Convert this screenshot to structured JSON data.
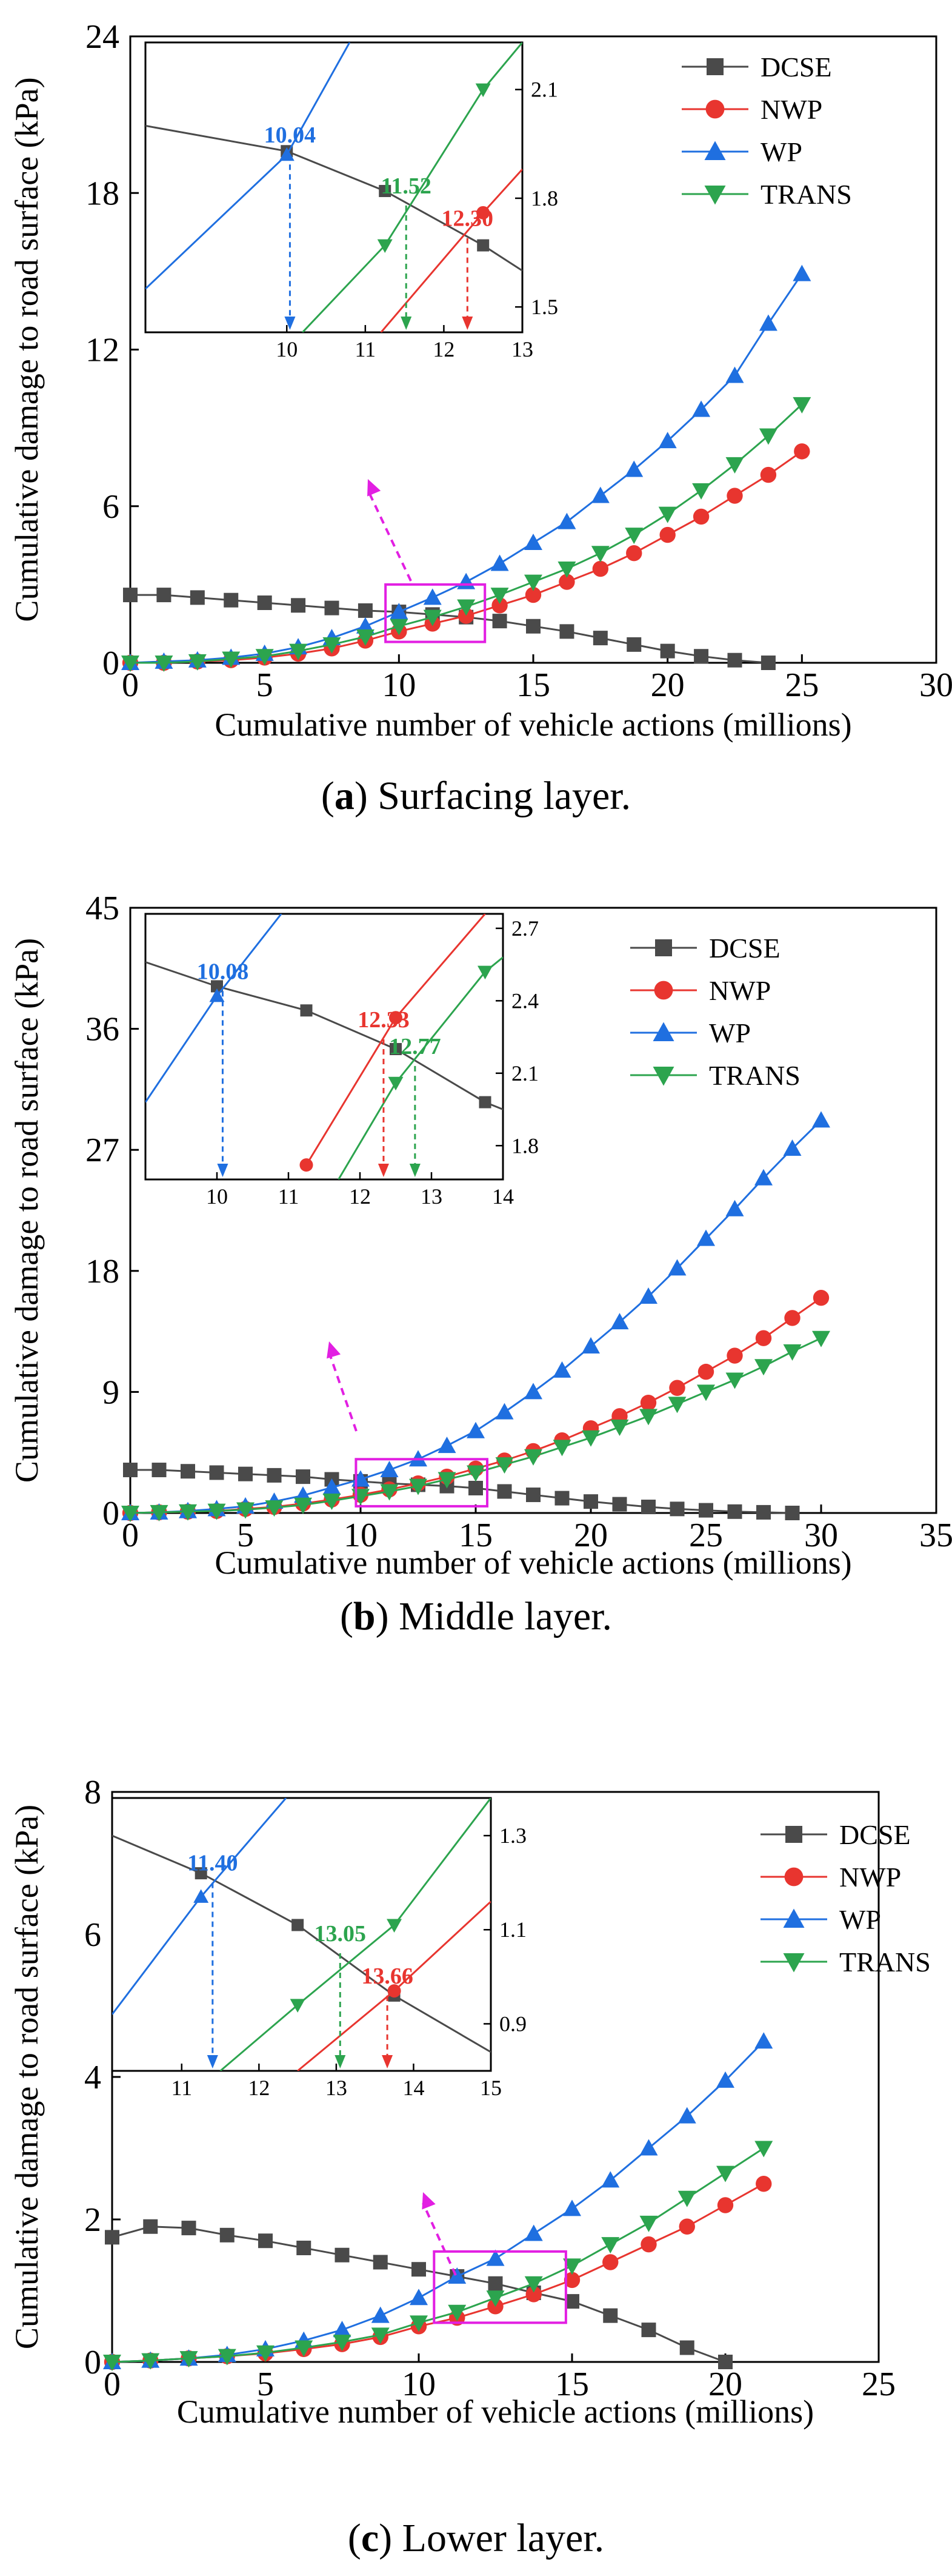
{
  "colors": {
    "DCSE": "#4a4a4a",
    "NWP": "#e8352f",
    "WP": "#1f6fe0",
    "TRANS": "#2ca44e",
    "highlight": "#e21fe2"
  },
  "chart_data": [
    {
      "type": "line",
      "caption_letter": "a",
      "caption_text": " Surfacing layer.",
      "xlabel": "Cumulative number of vehicle actions (millions)",
      "ylabel": "Cumulative damage to road surface (kPa)",
      "xlim": [
        0,
        30
      ],
      "ylim": [
        0,
        24
      ],
      "xticks": [
        "0",
        "5",
        "10",
        "15",
        "20",
        "25",
        "30"
      ],
      "yticks": [
        "0",
        "6",
        "12",
        "18",
        "24"
      ],
      "legend": "top-right",
      "highlight_box": {
        "x": [
          9.5,
          13.2
        ],
        "y": [
          0.8,
          3.0
        ]
      },
      "series": [
        {
          "name": "DCSE",
          "marker": "square",
          "x": [
            0,
            1.25,
            2.5,
            3.75,
            5,
            6.25,
            7.5,
            8.75,
            10,
            11.25,
            12.5,
            13.75,
            15,
            16.25,
            17.5,
            18.75,
            20,
            21.25,
            22.5,
            23.75
          ],
          "y": [
            2.6,
            2.6,
            2.5,
            2.4,
            2.3,
            2.2,
            2.1,
            2.0,
            1.95,
            1.85,
            1.75,
            1.6,
            1.4,
            1.2,
            0.95,
            0.7,
            0.45,
            0.25,
            0.1,
            0.0
          ]
        },
        {
          "name": "NWP",
          "marker": "circle",
          "x": [
            0,
            1.25,
            2.5,
            3.75,
            5,
            6.25,
            7.5,
            8.75,
            10,
            11.25,
            12.5,
            13.75,
            15,
            16.25,
            17.5,
            18.75,
            20,
            21.25,
            22.5,
            23.75,
            25
          ],
          "y": [
            0.0,
            0.0,
            0.05,
            0.1,
            0.2,
            0.35,
            0.55,
            0.85,
            1.2,
            1.5,
            1.8,
            2.2,
            2.6,
            3.1,
            3.6,
            4.2,
            4.9,
            5.6,
            6.4,
            7.2,
            8.1
          ]
        },
        {
          "name": "WP",
          "marker": "triangle-up",
          "x": [
            0,
            1.25,
            2.5,
            3.75,
            5,
            6.25,
            7.5,
            8.75,
            10,
            11.25,
            12.5,
            13.75,
            15,
            16.25,
            17.5,
            18.75,
            20,
            21.25,
            22.5,
            23.75,
            25
          ],
          "y": [
            0.0,
            0.05,
            0.1,
            0.2,
            0.35,
            0.6,
            0.95,
            1.4,
            1.95,
            2.5,
            3.1,
            3.8,
            4.6,
            5.4,
            6.4,
            7.4,
            8.5,
            9.7,
            11.0,
            13.0,
            14.9
          ]
        },
        {
          "name": "TRANS",
          "marker": "triangle-down",
          "x": [
            0,
            1.25,
            2.5,
            3.75,
            5,
            6.25,
            7.5,
            8.75,
            10,
            11.25,
            12.5,
            13.75,
            15,
            16.25,
            17.5,
            18.75,
            20,
            21.25,
            22.5,
            23.75,
            25
          ],
          "y": [
            0.0,
            0.0,
            0.05,
            0.15,
            0.25,
            0.45,
            0.7,
            1.0,
            1.4,
            1.75,
            2.15,
            2.6,
            3.1,
            3.6,
            4.2,
            4.9,
            5.7,
            6.6,
            7.6,
            8.7,
            9.9
          ]
        }
      ],
      "inset": {
        "xlim": [
          8.2,
          13
        ],
        "ylim": [
          1.43,
          2.23
        ],
        "xticks": [
          "10",
          "11",
          "12",
          "13"
        ],
        "yticks": [
          "1.5",
          "1.8",
          "2.1"
        ],
        "series": [
          {
            "name": "DCSE",
            "x": [
              8.2,
              10.0,
              11.25,
              12.5,
              13.0
            ],
            "y": [
              2.0,
              1.93,
              1.82,
              1.67,
              1.6
            ]
          },
          {
            "name": "NWP",
            "x": [
              11.2,
              12.5,
              13.0
            ],
            "y": [
              1.43,
              1.76,
              1.88
            ]
          },
          {
            "name": "WP",
            "x": [
              8.2,
              10.0,
              10.8
            ],
            "y": [
              1.55,
              1.92,
              2.23
            ]
          },
          {
            "name": "TRANS",
            "x": [
              10.2,
              11.25,
              12.5,
              13.0
            ],
            "y": [
              1.43,
              1.67,
              2.1,
              2.23
            ]
          }
        ],
        "intersections": [
          {
            "label": "10.04",
            "x": 10.04,
            "y": 1.92,
            "series": "WP"
          },
          {
            "label": "11.52",
            "x": 11.52,
            "y": 1.78,
            "series": "TRANS"
          },
          {
            "label": "12.30",
            "x": 12.3,
            "y": 1.69,
            "series": "NWP"
          }
        ]
      }
    },
    {
      "type": "line",
      "caption_letter": "b",
      "caption_text": " Middle layer.",
      "xlabel": "Cumulative number of vehicle actions (millions)",
      "ylabel": "Cumulative damage to road surface (kPa)",
      "xlim": [
        0,
        35
      ],
      "ylim": [
        0,
        45
      ],
      "xticks": [
        "0",
        "5",
        "10",
        "15",
        "20",
        "25",
        "30",
        "35"
      ],
      "yticks": [
        "0",
        "9",
        "18",
        "27",
        "36",
        "45"
      ],
      "legend": "top-right",
      "highlight_box": {
        "x": [
          9.8,
          15.5
        ],
        "y": [
          0.5,
          4.0
        ]
      },
      "series": [
        {
          "name": "DCSE",
          "marker": "square",
          "x": [
            0,
            1.25,
            2.5,
            3.75,
            5,
            6.25,
            7.5,
            8.75,
            10,
            11.25,
            12.5,
            13.75,
            15,
            16.25,
            17.5,
            18.75,
            20,
            21.25,
            22.5,
            23.75,
            25,
            26.25,
            27.5,
            28.75
          ],
          "y": [
            3.2,
            3.2,
            3.1,
            3.0,
            2.9,
            2.8,
            2.7,
            2.5,
            2.35,
            2.2,
            2.1,
            2.0,
            1.85,
            1.6,
            1.35,
            1.1,
            0.85,
            0.65,
            0.45,
            0.3,
            0.2,
            0.1,
            0.05,
            0.0
          ]
        },
        {
          "name": "NWP",
          "marker": "circle",
          "x": [
            0,
            1.25,
            2.5,
            3.75,
            5,
            6.25,
            7.5,
            8.75,
            10,
            11.25,
            12.5,
            13.75,
            15,
            16.25,
            17.5,
            18.75,
            20,
            21.25,
            22.5,
            23.75,
            25,
            26.25,
            27.5,
            28.75,
            30
          ],
          "y": [
            0.0,
            0.05,
            0.1,
            0.15,
            0.3,
            0.45,
            0.7,
            1.0,
            1.35,
            1.75,
            2.2,
            2.7,
            3.3,
            3.9,
            4.6,
            5.4,
            6.3,
            7.2,
            8.2,
            9.3,
            10.5,
            11.7,
            13.0,
            14.5,
            16.0
          ]
        },
        {
          "name": "WP",
          "marker": "triangle-up",
          "x": [
            0,
            1.25,
            2.5,
            3.75,
            5,
            6.25,
            7.5,
            8.75,
            10,
            11.25,
            12.5,
            13.75,
            15,
            16.25,
            17.5,
            18.75,
            20,
            21.25,
            22.5,
            23.75,
            25,
            26.25,
            27.5,
            28.75,
            30
          ],
          "y": [
            0.0,
            0.05,
            0.15,
            0.3,
            0.5,
            0.85,
            1.3,
            1.9,
            2.5,
            3.2,
            4.0,
            5.0,
            6.1,
            7.5,
            9.0,
            10.6,
            12.4,
            14.2,
            16.1,
            18.2,
            20.4,
            22.6,
            24.9,
            27.1,
            29.2
          ]
        },
        {
          "name": "TRANS",
          "marker": "triangle-down",
          "x": [
            0,
            1.25,
            2.5,
            3.75,
            5,
            6.25,
            7.5,
            8.75,
            10,
            11.25,
            12.5,
            13.75,
            15,
            16.25,
            17.5,
            18.75,
            20,
            21.25,
            22.5,
            23.75,
            25,
            26.25,
            27.5,
            28.75,
            30
          ],
          "y": [
            0.0,
            0.05,
            0.1,
            0.15,
            0.25,
            0.4,
            0.6,
            0.9,
            1.25,
            1.6,
            2.0,
            2.5,
            3.0,
            3.6,
            4.2,
            4.9,
            5.6,
            6.4,
            7.2,
            8.1,
            9.0,
            9.9,
            10.9,
            12.0,
            13.0
          ]
        }
      ],
      "inset": {
        "xlim": [
          9,
          14
        ],
        "ylim": [
          1.66,
          2.76
        ],
        "xticks": [
          "10",
          "11",
          "12",
          "13",
          "14"
        ],
        "yticks": [
          "1.8",
          "2.1",
          "2.4",
          "2.7"
        ],
        "series": [
          {
            "name": "DCSE",
            "x": [
              9.0,
              10.0,
              11.25,
              12.5,
              13.75,
              14.0
            ],
            "y": [
              2.56,
              2.46,
              2.36,
              2.2,
              1.98,
              1.95
            ]
          },
          {
            "name": "NWP",
            "x": [
              11.25,
              12.5,
              13.75
            ],
            "y": [
              1.72,
              2.33,
              2.76
            ]
          },
          {
            "name": "WP",
            "x": [
              9.0,
              10.0,
              10.9
            ],
            "y": [
              1.98,
              2.42,
              2.76
            ]
          },
          {
            "name": "TRANS",
            "x": [
              11.7,
              12.5,
              13.75,
              14.0
            ],
            "y": [
              1.66,
              2.06,
              2.52,
              2.58
            ]
          }
        ],
        "intersections": [
          {
            "label": "10.08",
            "x": 10.08,
            "y": 2.44,
            "series": "WP"
          },
          {
            "label": "12.33",
            "x": 12.33,
            "y": 2.24,
            "series": "NWP"
          },
          {
            "label": "12.77",
            "x": 12.77,
            "y": 2.13,
            "series": "TRANS"
          }
        ]
      }
    },
    {
      "type": "line",
      "caption_letter": "c",
      "caption_text": " Lower layer.",
      "xlabel": "Cumulative number of vehicle actions (millions)",
      "ylabel": "Cumulative damage to road surface (kPa)",
      "xlim": [
        0,
        25
      ],
      "ylim": [
        0,
        8
      ],
      "xticks": [
        "0",
        "5",
        "10",
        "15",
        "20",
        "25"
      ],
      "yticks": [
        "0",
        "2",
        "4",
        "6",
        "8"
      ],
      "legend": "top-right",
      "highlight_box": {
        "x": [
          10.5,
          14.8
        ],
        "y": [
          0.55,
          1.55
        ]
      },
      "series": [
        {
          "name": "DCSE",
          "marker": "square",
          "x": [
            0,
            1.25,
            2.5,
            3.75,
            5,
            6.25,
            7.5,
            8.75,
            10,
            11.25,
            12.5,
            13.75,
            15,
            16.25,
            17.5,
            18.75,
            20
          ],
          "y": [
            1.75,
            1.9,
            1.88,
            1.78,
            1.7,
            1.6,
            1.5,
            1.4,
            1.3,
            1.2,
            1.1,
            0.97,
            0.85,
            0.65,
            0.45,
            0.2,
            0.0
          ]
        },
        {
          "name": "NWP",
          "marker": "circle",
          "x": [
            0,
            1.25,
            2.5,
            3.75,
            5,
            6.25,
            7.5,
            8.75,
            10,
            11.25,
            12.5,
            13.75,
            15,
            16.25,
            17.5,
            18.75,
            20,
            21.25
          ],
          "y": [
            0.0,
            0.02,
            0.05,
            0.08,
            0.12,
            0.18,
            0.25,
            0.35,
            0.5,
            0.62,
            0.78,
            0.95,
            1.15,
            1.4,
            1.65,
            1.9,
            2.2,
            2.5
          ]
        },
        {
          "name": "WP",
          "marker": "triangle-up",
          "x": [
            0,
            1.25,
            2.5,
            3.75,
            5,
            6.25,
            7.5,
            8.75,
            10,
            11.25,
            12.5,
            13.75,
            15,
            16.25,
            17.5,
            18.75,
            20,
            21.25
          ],
          "y": [
            0.0,
            0.02,
            0.05,
            0.1,
            0.18,
            0.3,
            0.45,
            0.65,
            0.9,
            1.2,
            1.45,
            1.8,
            2.15,
            2.55,
            3.0,
            3.45,
            3.95,
            4.5
          ]
        },
        {
          "name": "TRANS",
          "marker": "triangle-down",
          "x": [
            0,
            1.25,
            2.5,
            3.75,
            5,
            6.25,
            7.5,
            8.75,
            10,
            11.25,
            12.5,
            13.75,
            15,
            16.25,
            17.5,
            18.75,
            20,
            21.25
          ],
          "y": [
            0.0,
            0.02,
            0.05,
            0.08,
            0.13,
            0.2,
            0.28,
            0.38,
            0.55,
            0.7,
            0.9,
            1.1,
            1.35,
            1.65,
            1.95,
            2.3,
            2.65,
            3.0
          ]
        }
      ],
      "inset": {
        "xlim": [
          10.1,
          15
        ],
        "ylim": [
          0.8,
          1.38
        ],
        "xticks": [
          "11",
          "12",
          "13",
          "14",
          "15"
        ],
        "yticks": [
          "0.9",
          "1.1",
          "1.3"
        ],
        "series": [
          {
            "name": "DCSE",
            "x": [
              10.1,
              11.25,
              12.5,
              13.75,
              15.0
            ],
            "y": [
              1.3,
              1.22,
              1.11,
              0.96,
              0.84
            ]
          },
          {
            "name": "NWP",
            "x": [
              12.5,
              13.75,
              15.0
            ],
            "y": [
              0.8,
              0.97,
              1.16
            ]
          },
          {
            "name": "WP",
            "x": [
              10.1,
              11.25,
              12.35
            ],
            "y": [
              0.92,
              1.17,
              1.38
            ]
          },
          {
            "name": "TRANS",
            "x": [
              11.5,
              12.5,
              13.75,
              15.0
            ],
            "y": [
              0.8,
              0.94,
              1.11,
              1.38
            ]
          }
        ],
        "intersections": [
          {
            "label": "11.40",
            "x": 11.4,
            "y": 1.2,
            "series": "WP"
          },
          {
            "label": "13.05",
            "x": 13.05,
            "y": 1.05,
            "series": "TRANS"
          },
          {
            "label": "13.66",
            "x": 13.66,
            "y": 0.96,
            "series": "NWP"
          }
        ]
      }
    }
  ]
}
